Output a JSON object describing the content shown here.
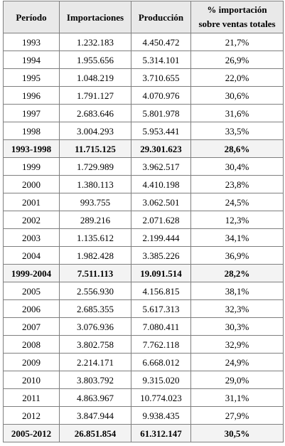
{
  "table": {
    "headers": {
      "period": "Período",
      "imports": "Importaciones",
      "production": "Producción",
      "pct_line1": "% importación",
      "pct_line2": "sobre ventas totales"
    },
    "rows": [
      {
        "period": "1993",
        "imports": "1.232.183",
        "production": "4.450.472",
        "pct": "21,7%",
        "summary": false
      },
      {
        "period": "1994",
        "imports": "1.955.656",
        "production": "5.314.101",
        "pct": "26,9%",
        "summary": false
      },
      {
        "period": "1995",
        "imports": "1.048.219",
        "production": "3.710.655",
        "pct": "22,0%",
        "summary": false
      },
      {
        "period": "1996",
        "imports": "1.791.127",
        "production": "4.070.976",
        "pct": "30,6%",
        "summary": false
      },
      {
        "period": "1997",
        "imports": "2.683.646",
        "production": "5.801.978",
        "pct": "31,6%",
        "summary": false
      },
      {
        "period": "1998",
        "imports": "3.004.293",
        "production": "5.953.441",
        "pct": "33,5%",
        "summary": false
      },
      {
        "period": "1993-1998",
        "imports": "11.715.125",
        "production": "29.301.623",
        "pct": "28,6%",
        "summary": true
      },
      {
        "period": "1999",
        "imports": "1.729.989",
        "production": "3.962.517",
        "pct": "30,4%",
        "summary": false
      },
      {
        "period": "2000",
        "imports": "1.380.113",
        "production": "4.410.198",
        "pct": "23,8%",
        "summary": false
      },
      {
        "period": "2001",
        "imports": "993.755",
        "production": "3.062.501",
        "pct": "24,5%",
        "summary": false
      },
      {
        "period": "2002",
        "imports": "289.216",
        "production": "2.071.628",
        "pct": "12,3%",
        "summary": false
      },
      {
        "period": "2003",
        "imports": "1.135.612",
        "production": "2.199.444",
        "pct": "34,1%",
        "summary": false
      },
      {
        "period": "2004",
        "imports": "1.982.428",
        "production": "3.385.226",
        "pct": "36,9%",
        "summary": false
      },
      {
        "period": "1999-2004",
        "imports": "7.511.113",
        "production": "19.091.514",
        "pct": "28,2%",
        "summary": true
      },
      {
        "period": "2005",
        "imports": "2.556.930",
        "production": "4.156.815",
        "pct": "38,1%",
        "summary": false
      },
      {
        "period": "2006",
        "imports": "2.685.355",
        "production": "5.617.313",
        "pct": "32,3%",
        "summary": false
      },
      {
        "period": "2007",
        "imports": "3.076.936",
        "production": "7.080.411",
        "pct": "30,3%",
        "summary": false
      },
      {
        "period": "2008",
        "imports": "3.802.758",
        "production": "7.762.118",
        "pct": "32,9%",
        "summary": false
      },
      {
        "period": "2009",
        "imports": "2.214.171",
        "production": "6.668.012",
        "pct": "24,9%",
        "summary": false
      },
      {
        "period": "2010",
        "imports": "3.803.792",
        "production": "9.315.020",
        "pct": "29,0%",
        "summary": false
      },
      {
        "period": "2011",
        "imports": "4.863.967",
        "production": "10.774.023",
        "pct": "31,1%",
        "summary": false
      },
      {
        "period": "2012",
        "imports": "3.847.944",
        "production": "9.938.435",
        "pct": "27,9%",
        "summary": false
      },
      {
        "period": "2005-2012",
        "imports": "26.851.854",
        "production": "61.312.147",
        "pct": "30,5%",
        "summary": true
      }
    ]
  },
  "colors": {
    "header_bg": "#e9e9e9",
    "summary_bg": "#f3f3f3",
    "border": "#7f7f7f",
    "text": "#000000"
  }
}
